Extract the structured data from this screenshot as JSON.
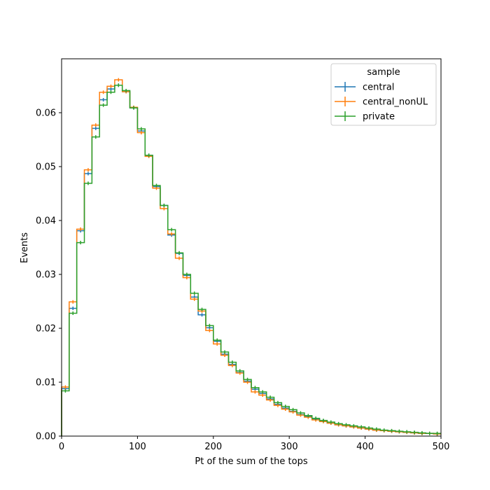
{
  "chart_data": {
    "type": "histogram-step",
    "xlabel": "Pt of the sum of the tops",
    "ylabel": "Events",
    "xlim": [
      0,
      500
    ],
    "ylim": [
      0,
      0.07
    ],
    "xticks": [
      "0",
      "100",
      "200",
      "300",
      "400",
      "500"
    ],
    "yticks": [
      "0.00",
      "0.01",
      "0.02",
      "0.03",
      "0.04",
      "0.05",
      "0.06"
    ],
    "grid": false,
    "legend": {
      "title": "sample",
      "placement": "top-right"
    },
    "bin_edges": [
      0,
      10,
      20,
      30,
      40,
      50,
      60,
      70,
      80,
      90,
      100,
      110,
      120,
      130,
      140,
      150,
      160,
      170,
      180,
      190,
      200,
      210,
      220,
      230,
      240,
      250,
      260,
      270,
      280,
      290,
      300,
      310,
      320,
      330,
      340,
      350,
      360,
      370,
      380,
      390,
      400,
      410,
      420,
      430,
      440,
      450,
      460,
      470,
      480,
      490,
      500
    ],
    "series": [
      {
        "name": "central",
        "color": "#1f77b4",
        "values": [
          0.0088,
          0.0237,
          0.0381,
          0.0487,
          0.0571,
          0.0624,
          0.0644,
          0.0651,
          0.0639,
          0.0609,
          0.0566,
          0.0521,
          0.0463,
          0.0428,
          0.0373,
          0.0339,
          0.0298,
          0.0258,
          0.0225,
          0.0201,
          0.0176,
          0.0152,
          0.0133,
          0.0118,
          0.0102,
          0.0087,
          0.0079,
          0.0069,
          0.0059,
          0.0052,
          0.0046,
          0.004,
          0.0036,
          0.0031,
          0.0028,
          0.0024,
          0.0021,
          0.0019,
          0.0017,
          0.0015,
          0.0013,
          0.0011,
          0.001,
          0.0009,
          0.0008,
          0.0007,
          0.0006,
          0.0005,
          0.0005,
          0.0004
        ]
      },
      {
        "name": "central_nonUL",
        "color": "#ff7f0e",
        "values": [
          0.0091,
          0.0249,
          0.0384,
          0.0494,
          0.0577,
          0.0638,
          0.0649,
          0.0661,
          0.0639,
          0.061,
          0.0563,
          0.0519,
          0.046,
          0.0422,
          0.0375,
          0.033,
          0.0294,
          0.0254,
          0.0232,
          0.0196,
          0.0171,
          0.015,
          0.0131,
          0.0117,
          0.01,
          0.0082,
          0.0076,
          0.0067,
          0.0057,
          0.005,
          0.0045,
          0.0039,
          0.0035,
          0.003,
          0.0027,
          0.0024,
          0.0021,
          0.0019,
          0.0017,
          0.0015,
          0.0013,
          0.0011,
          0.001,
          0.0009,
          0.0008,
          0.0007,
          0.0006,
          0.0005,
          0.0005,
          0.0004
        ]
      },
      {
        "name": "private",
        "color": "#2ca02c",
        "values": [
          0.0084,
          0.0228,
          0.0359,
          0.0469,
          0.0555,
          0.0614,
          0.0638,
          0.0651,
          0.0641,
          0.0609,
          0.057,
          0.0521,
          0.0465,
          0.0428,
          0.0383,
          0.034,
          0.03,
          0.0265,
          0.0235,
          0.0205,
          0.0178,
          0.0156,
          0.0137,
          0.0121,
          0.0105,
          0.009,
          0.0082,
          0.0072,
          0.0062,
          0.0055,
          0.0049,
          0.0043,
          0.0038,
          0.0033,
          0.0029,
          0.0026,
          0.0023,
          0.0021,
          0.0019,
          0.0017,
          0.0015,
          0.0013,
          0.0011,
          0.001,
          0.0009,
          0.0008,
          0.0007,
          0.0006,
          0.0005,
          0.0005
        ]
      }
    ]
  }
}
